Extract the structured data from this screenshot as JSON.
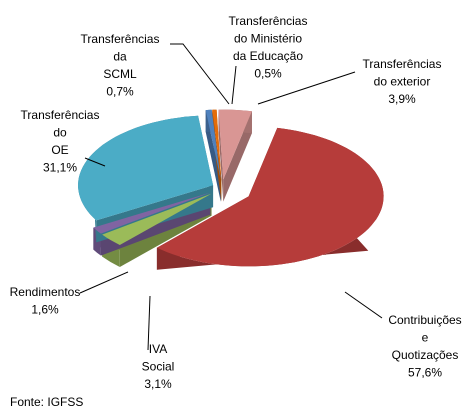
{
  "chart_data": {
    "type": "pie",
    "categories": [
      [
        "Transferências",
        "do exterior"
      ],
      [
        "Contribuições",
        "e",
        "Quotizações"
      ],
      [
        "IVA",
        "Social"
      ],
      [
        "Rendimentos"
      ],
      [
        "Transferências",
        "do",
        "OE"
      ],
      [
        "Transferências",
        "da",
        "SCML"
      ],
      [
        "Transferências",
        "do Ministério",
        "da Educação"
      ]
    ],
    "values": [
      3.9,
      57.6,
      3.1,
      1.6,
      31.1,
      0.7,
      0.5
    ],
    "value_labels": [
      "3,9%",
      "57,6%",
      "3,1%",
      "1,6%",
      "31,1%",
      "0,7%",
      "0,5%"
    ],
    "colors": [
      "#d99694",
      "#b63c3a",
      "#9bbb59",
      "#8064a2",
      "#4bacc6",
      "#4f81bd",
      "#e46c0a"
    ],
    "source": "Fonte: IGFSS"
  }
}
